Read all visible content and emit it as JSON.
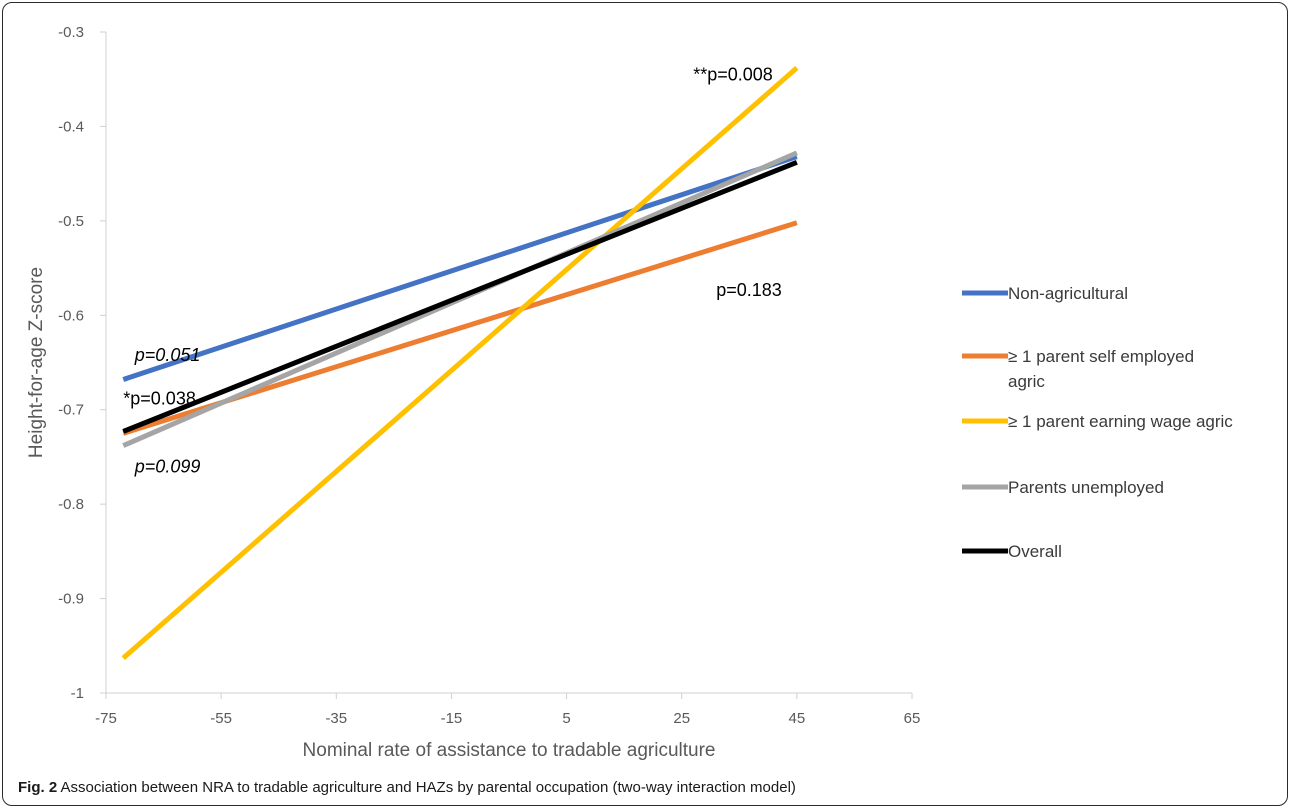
{
  "chart_data": {
    "type": "line",
    "title": "",
    "xlabel": "Nominal rate of assistance to tradable agriculture",
    "ylabel": "Height-for-age Z-score",
    "xlim": [
      -75,
      65
    ],
    "ylim": [
      -1,
      -0.3
    ],
    "x_ticks": [
      "-75",
      "-55",
      "-35",
      "-15",
      "5",
      "25",
      "45",
      "65"
    ],
    "y_ticks": [
      "-0.3",
      "-0.4",
      "-0.5",
      "-0.6",
      "-0.7",
      "-0.8",
      "-0.9",
      "-1"
    ],
    "grid": false,
    "legend_position": "right",
    "series": [
      {
        "name": "Non-agricultural",
        "color": "#4472C4",
        "x": [
          -72,
          45
        ],
        "y": [
          -0.668,
          -0.432
        ]
      },
      {
        "name": "≥ 1 parent self employed agric",
        "color": "#ED7D31",
        "x": [
          -72,
          45
        ],
        "y": [
          -0.725,
          -0.502
        ]
      },
      {
        "name": "≥ 1 parent earning wage agric",
        "color": "#FFC000",
        "x": [
          -72,
          45
        ],
        "y": [
          -0.963,
          -0.338
        ]
      },
      {
        "name": "Parents unemployed",
        "color": "#A5A5A5",
        "x": [
          -72,
          45
        ],
        "y": [
          -0.738,
          -0.428
        ]
      },
      {
        "name": "Overall",
        "color": "#000000",
        "x": [
          -72,
          45
        ],
        "y": [
          -0.723,
          -0.438
        ]
      }
    ],
    "annotations": [
      {
        "text": "p=0.051",
        "italic": true,
        "x": -70,
        "y": -0.642
      },
      {
        "text": "*p=0.038",
        "italic": false,
        "x": -72,
        "y": -0.688
      },
      {
        "text": "p=0.099",
        "italic": true,
        "x": -70,
        "y": -0.76
      },
      {
        "text": "**p=0.008",
        "italic": false,
        "x": 27,
        "y": -0.345
      },
      {
        "text": "p=0.183",
        "italic": false,
        "x": 31,
        "y": -0.573
      }
    ]
  },
  "caption": {
    "label": "Fig. 2",
    "text": " Association between NRA to tradable agriculture and HAZs by parental occupation (two-way interaction model)"
  }
}
